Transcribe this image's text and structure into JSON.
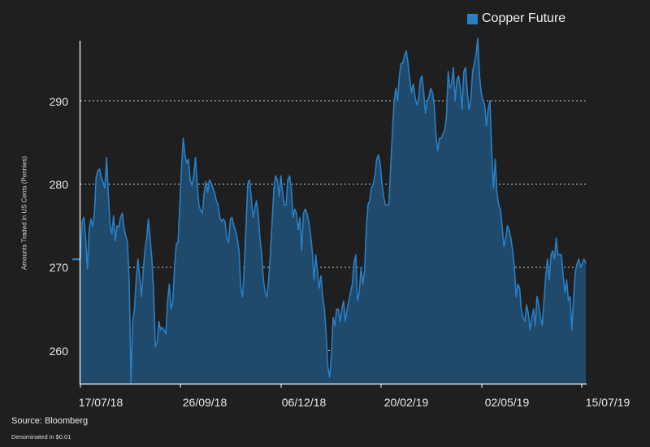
{
  "legend": {
    "label": "Copper Future",
    "color": "#2a7fc4"
  },
  "axes": {
    "ylabel": "Amounts Traded in US Cents (Pennies)",
    "yticks": [
      "290",
      "280",
      "270",
      "260"
    ],
    "xticks": [
      "17/07/18",
      "26/09/18",
      "06/12/18",
      "20/02/19",
      "02/05/19",
      "15/07/19"
    ]
  },
  "footer": {
    "source": "Source: Bloomberg",
    "note": "Denominated in $0.01"
  },
  "colors": {
    "background": "#1f1f1f",
    "line": "#2a7fc4",
    "fill": "#1f4a6b",
    "grid": "#e8e8e8"
  },
  "chart_data": {
    "type": "area",
    "title": "",
    "xlabel": "",
    "ylabel": "Amounts Traded in US Cents (Pennies)",
    "ylim": [
      256.1,
      297.5
    ],
    "yticks": [
      260,
      270,
      280,
      290
    ],
    "xticks": [
      "17/07/18",
      "26/09/18",
      "06/12/18",
      "20/02/19",
      "02/05/19",
      "15/07/19"
    ],
    "grid": "horizontal dotted",
    "legend_position": "top-right",
    "series": [
      {
        "name": "Copper Future",
        "values": [
          271.0,
          275.5,
          276.0,
          273.5,
          269.8,
          274.5,
          275.8,
          274.9,
          276.5,
          280.8,
          281.6,
          281.8,
          280.8,
          280.2,
          279.5,
          283.2,
          279.0,
          275.0,
          274.0,
          276.2,
          273.2,
          275.0,
          274.8,
          276.0,
          276.5,
          274.8,
          273.8,
          273.0,
          268.0,
          256.1,
          263.5,
          265.0,
          268.5,
          271.0,
          268.8,
          266.5,
          269.5,
          272.0,
          273.5,
          275.8,
          273.5,
          271.0,
          267.0,
          260.5,
          261.0,
          263.5,
          262.5,
          262.8,
          262.5,
          262.0,
          265.8,
          268.0,
          265.0,
          266.0,
          270.0,
          272.8,
          273.0,
          277.5,
          282.0,
          285.5,
          283.5,
          282.5,
          283.0,
          280.5,
          279.8,
          281.0,
          283.2,
          280.0,
          277.5,
          276.8,
          276.5,
          279.0,
          280.3,
          279.0,
          280.5,
          280.2,
          279.5,
          279.0,
          278.0,
          277.5,
          276.0,
          275.5,
          275.8,
          275.5,
          273.5,
          273.0,
          275.8,
          276.0,
          275.0,
          274.5,
          273.5,
          272.0,
          267.5,
          266.5,
          270.0,
          275.0,
          280.0,
          280.5,
          278.5,
          276.0,
          277.0,
          278.0,
          276.5,
          273.5,
          271.5,
          268.5,
          267.0,
          266.5,
          268.5,
          271.5,
          275.5,
          279.5,
          281.0,
          280.5,
          278.5,
          281.0,
          279.0,
          277.5,
          277.5,
          280.5,
          281.0,
          279.5,
          276.0,
          277.0,
          276.5,
          274.5,
          276.0,
          272.0,
          276.5,
          277.0,
          276.5,
          275.5,
          274.0,
          272.0,
          268.5,
          271.5,
          269.5,
          267.5,
          269.0,
          266.5,
          265.0,
          262.0,
          258.0,
          256.8,
          259.5,
          264.0,
          263.0,
          265.0,
          265.0,
          263.5,
          265.0,
          266.0,
          263.5,
          265.0,
          266.0,
          267.0,
          268.0,
          270.5,
          271.5,
          266.0,
          267.0,
          270.0,
          268.0,
          269.5,
          274.5,
          277.5,
          278.0,
          279.5,
          280.0,
          281.0,
          283.0,
          283.5,
          282.5,
          280.0,
          278.5,
          277.5,
          277.5,
          277.5,
          282.0,
          286.0,
          290.0,
          291.5,
          290.0,
          293.0,
          294.5,
          294.5,
          295.5,
          296.0,
          294.5,
          292.5,
          291.0,
          292.0,
          290.5,
          289.5,
          290.0,
          292.5,
          293.0,
          291.0,
          288.5,
          290.0,
          290.5,
          291.5,
          291.0,
          289.5,
          286.0,
          284.0,
          285.5,
          285.5,
          286.0,
          286.5,
          288.0,
          293.5,
          291.5,
          292.0,
          294.0,
          290.0,
          292.5,
          293.0,
          291.5,
          289.0,
          293.5,
          294.0,
          291.0,
          289.0,
          290.0,
          293.5,
          294.5,
          295.5,
          297.5,
          293.0,
          291.0,
          290.0,
          289.5,
          287.0,
          289.0,
          290.0,
          284.0,
          279.5,
          283.0,
          279.0,
          277.5,
          277.0,
          275.0,
          272.5,
          273.5,
          275.0,
          274.5,
          273.5,
          272.0,
          270.0,
          266.5,
          268.0,
          267.5,
          265.0,
          264.0,
          263.5,
          265.5,
          264.5,
          262.5,
          264.0,
          265.0,
          263.0,
          266.5,
          265.5,
          264.0,
          263.0,
          266.0,
          269.0,
          271.0,
          268.5,
          271.5,
          272.0,
          271.0,
          273.5,
          271.5,
          271.5,
          271.5,
          269.0,
          267.0,
          268.5,
          266.0,
          266.5,
          262.5,
          266.5,
          269.5,
          270.5,
          271.0,
          270.0,
          270.5,
          271.0,
          270.5
        ]
      }
    ]
  }
}
